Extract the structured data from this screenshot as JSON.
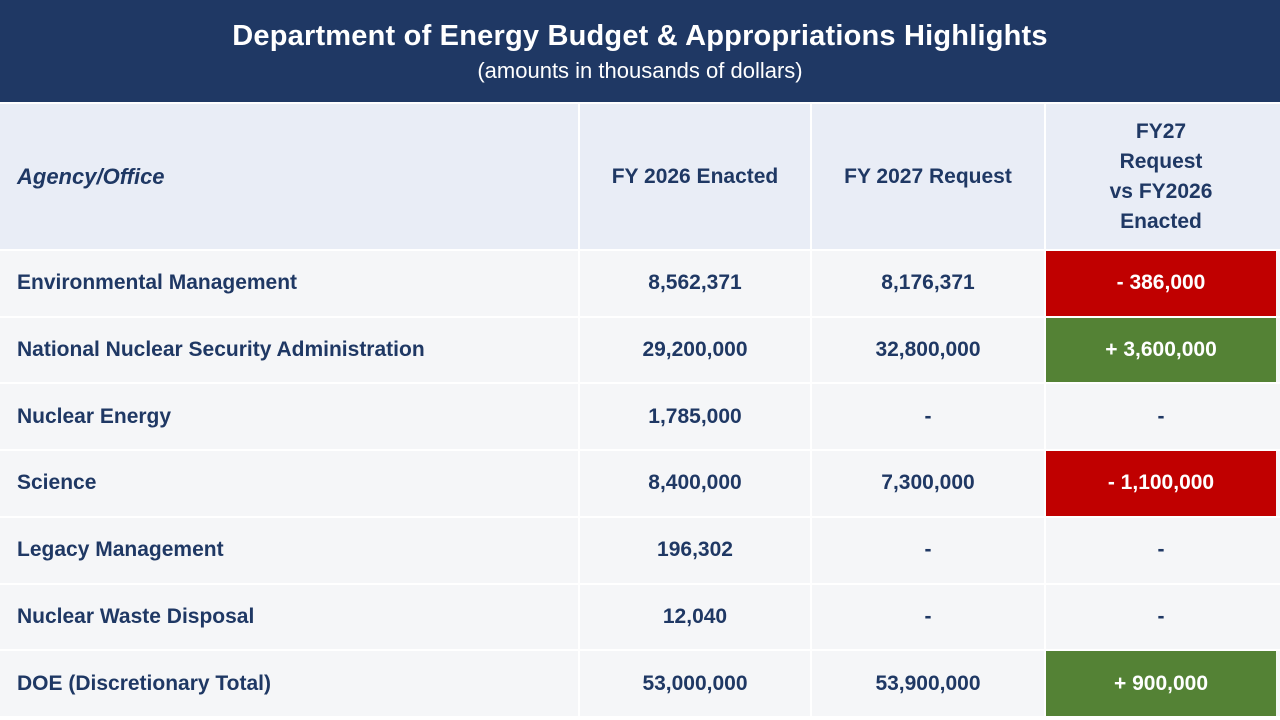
{
  "banner": {
    "title": "Department of Energy Budget & Appropriations Highlights",
    "subtitle": "(amounts in thousands of dollars)"
  },
  "colors": {
    "banner_bg": "#1F3864",
    "header_row_bg": "#E9EDF6",
    "data_row_bg": "#F5F6F8",
    "text_navy": "#1F3864",
    "negative_bg": "#C00000",
    "positive_bg": "#548235",
    "delta_text": "#FFFFFF",
    "separator": "#FFFFFF"
  },
  "table": {
    "columns": {
      "agency": "Agency/Office",
      "fy2026": "FY 2026 Enacted",
      "fy2027": "FY 2027 Request",
      "delta": "FY27\nRequest\nvs FY2026\nEnacted"
    },
    "rows": [
      {
        "agency": "Environmental Management",
        "fy2026": "8,562,371",
        "fy2027": "8,176,371",
        "delta": "- 386,000",
        "delta_type": "negative"
      },
      {
        "agency": "National Nuclear Security Administration",
        "fy2026": "29,200,000",
        "fy2027": "32,800,000",
        "delta": "+ 3,600,000",
        "delta_type": "positive"
      },
      {
        "agency": "Nuclear Energy",
        "fy2026": "1,785,000",
        "fy2027": "-",
        "delta": "-",
        "delta_type": "none"
      },
      {
        "agency": "Science",
        "fy2026": "8,400,000",
        "fy2027": "7,300,000",
        "delta": "- 1,100,000",
        "delta_type": "negative"
      },
      {
        "agency": "Legacy Management",
        "fy2026": "196,302",
        "fy2027": "-",
        "delta": "-",
        "delta_type": "none"
      },
      {
        "agency": "Nuclear Waste Disposal",
        "fy2026": "12,040",
        "fy2027": "-",
        "delta": "-",
        "delta_type": "none"
      },
      {
        "agency": "DOE (Discretionary Total)",
        "fy2026": "53,000,000",
        "fy2027": "53,900,000",
        "delta": "+ 900,000",
        "delta_type": "positive"
      }
    ]
  },
  "chart_data": {
    "type": "table",
    "title": "Department of Energy Budget & Appropriations Highlights",
    "subtitle": "(amounts in thousands of dollars)",
    "units": "thousands of dollars",
    "columns": [
      "Agency/Office",
      "FY 2026 Enacted",
      "FY 2027 Request",
      "FY27 Request vs FY2026 Enacted"
    ],
    "rows": [
      [
        "Environmental Management",
        8562371,
        8176371,
        -386000
      ],
      [
        "National Nuclear Security Administration",
        29200000,
        32800000,
        3600000
      ],
      [
        "Nuclear Energy",
        1785000,
        null,
        null
      ],
      [
        "Science",
        8400000,
        7300000,
        -1100000
      ],
      [
        "Legacy Management",
        196302,
        null,
        null
      ],
      [
        "Nuclear Waste Disposal",
        12040,
        null,
        null
      ],
      [
        "DOE (Discretionary Total)",
        53000000,
        53900000,
        900000
      ]
    ]
  }
}
